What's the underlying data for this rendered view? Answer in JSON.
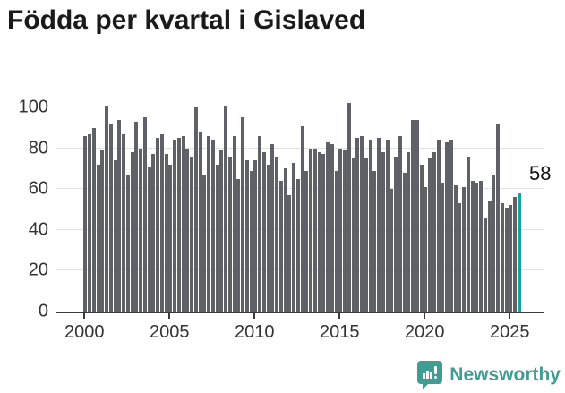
{
  "title": "Födda per kvartal i Gislaved",
  "annotation": {
    "last_value_label": "58"
  },
  "branding": {
    "logo_text": "Newsworthy",
    "logo_color": "#3f9d94"
  },
  "colors": {
    "bar": "#5f6167",
    "highlight": "#13a3a1",
    "axis": "#3b3b3b",
    "grid": "#e2e2e2",
    "tick_text": "#333333",
    "title_text": "#1a1a1a"
  },
  "chart_data": {
    "type": "bar",
    "title": "Födda per kvartal i Gislaved",
    "xlabel": "",
    "ylabel": "",
    "ylim": [
      0,
      104
    ],
    "grid": "horizontal",
    "legend": "none",
    "y_tick_values": [
      0,
      20,
      40,
      60,
      80,
      100
    ],
    "x_tick_labels": [
      "2000",
      "2005",
      "2010",
      "2015",
      "2020",
      "2025"
    ],
    "x_ticks_every_n_bars": 20,
    "highlight_last_bar": true,
    "last_value_label": "58",
    "categories": [
      "2000 Q1",
      "2000 Q2",
      "2000 Q3",
      "2000 Q4",
      "2001 Q1",
      "2001 Q2",
      "2001 Q3",
      "2001 Q4",
      "2002 Q1",
      "2002 Q2",
      "2002 Q3",
      "2002 Q4",
      "2003 Q1",
      "2003 Q2",
      "2003 Q3",
      "2003 Q4",
      "2004 Q1",
      "2004 Q2",
      "2004 Q3",
      "2004 Q4",
      "2005 Q1",
      "2005 Q2",
      "2005 Q3",
      "2005 Q4",
      "2006 Q1",
      "2006 Q2",
      "2006 Q3",
      "2006 Q4",
      "2007 Q1",
      "2007 Q2",
      "2007 Q3",
      "2007 Q4",
      "2008 Q1",
      "2008 Q2",
      "2008 Q3",
      "2008 Q4",
      "2009 Q1",
      "2009 Q2",
      "2009 Q3",
      "2009 Q4",
      "2010 Q1",
      "2010 Q2",
      "2010 Q3",
      "2010 Q4",
      "2011 Q1",
      "2011 Q2",
      "2011 Q3",
      "2011 Q4",
      "2012 Q1",
      "2012 Q2",
      "2012 Q3",
      "2012 Q4",
      "2013 Q1",
      "2013 Q2",
      "2013 Q3",
      "2013 Q4",
      "2014 Q1",
      "2014 Q2",
      "2014 Q3",
      "2014 Q4",
      "2015 Q1",
      "2015 Q2",
      "2015 Q3",
      "2015 Q4",
      "2016 Q1",
      "2016 Q2",
      "2016 Q3",
      "2016 Q4",
      "2017 Q1",
      "2017 Q2",
      "2017 Q3",
      "2017 Q4",
      "2018 Q1",
      "2018 Q2",
      "2018 Q3",
      "2018 Q4",
      "2019 Q1",
      "2019 Q2",
      "2019 Q3",
      "2019 Q4",
      "2020 Q1",
      "2020 Q2",
      "2020 Q3",
      "2020 Q4",
      "2021 Q1",
      "2021 Q2",
      "2021 Q3",
      "2021 Q4",
      "2022 Q1",
      "2022 Q2",
      "2022 Q3",
      "2022 Q4",
      "2023 Q1",
      "2023 Q2",
      "2023 Q3",
      "2023 Q4",
      "2024 Q1",
      "2024 Q2",
      "2024 Q3",
      "2024 Q4",
      "2025 Q1",
      "2025 Q2",
      "2025 Q3"
    ],
    "values": [
      86,
      87,
      90,
      72,
      79,
      101,
      92,
      74,
      94,
      87,
      67,
      78,
      93,
      80,
      95,
      71,
      77,
      85,
      87,
      77,
      72,
      84,
      85,
      86,
      80,
      76,
      100,
      88,
      67,
      86,
      84,
      72,
      79,
      101,
      76,
      86,
      65,
      95,
      74,
      69,
      74,
      86,
      78,
      72,
      82,
      76,
      64,
      70,
      57,
      73,
      65,
      91,
      69,
      80,
      80,
      78,
      77,
      83,
      82,
      69,
      80,
      79,
      102,
      75,
      85,
      86,
      75,
      84,
      69,
      85,
      78,
      84,
      60,
      76,
      86,
      68,
      78,
      94,
      94,
      72,
      61,
      75,
      78,
      84,
      63,
      83,
      84,
      62,
      53,
      61,
      76,
      64,
      63,
      64,
      46,
      54,
      67,
      92,
      53,
      51,
      52,
      56,
      58
    ]
  }
}
